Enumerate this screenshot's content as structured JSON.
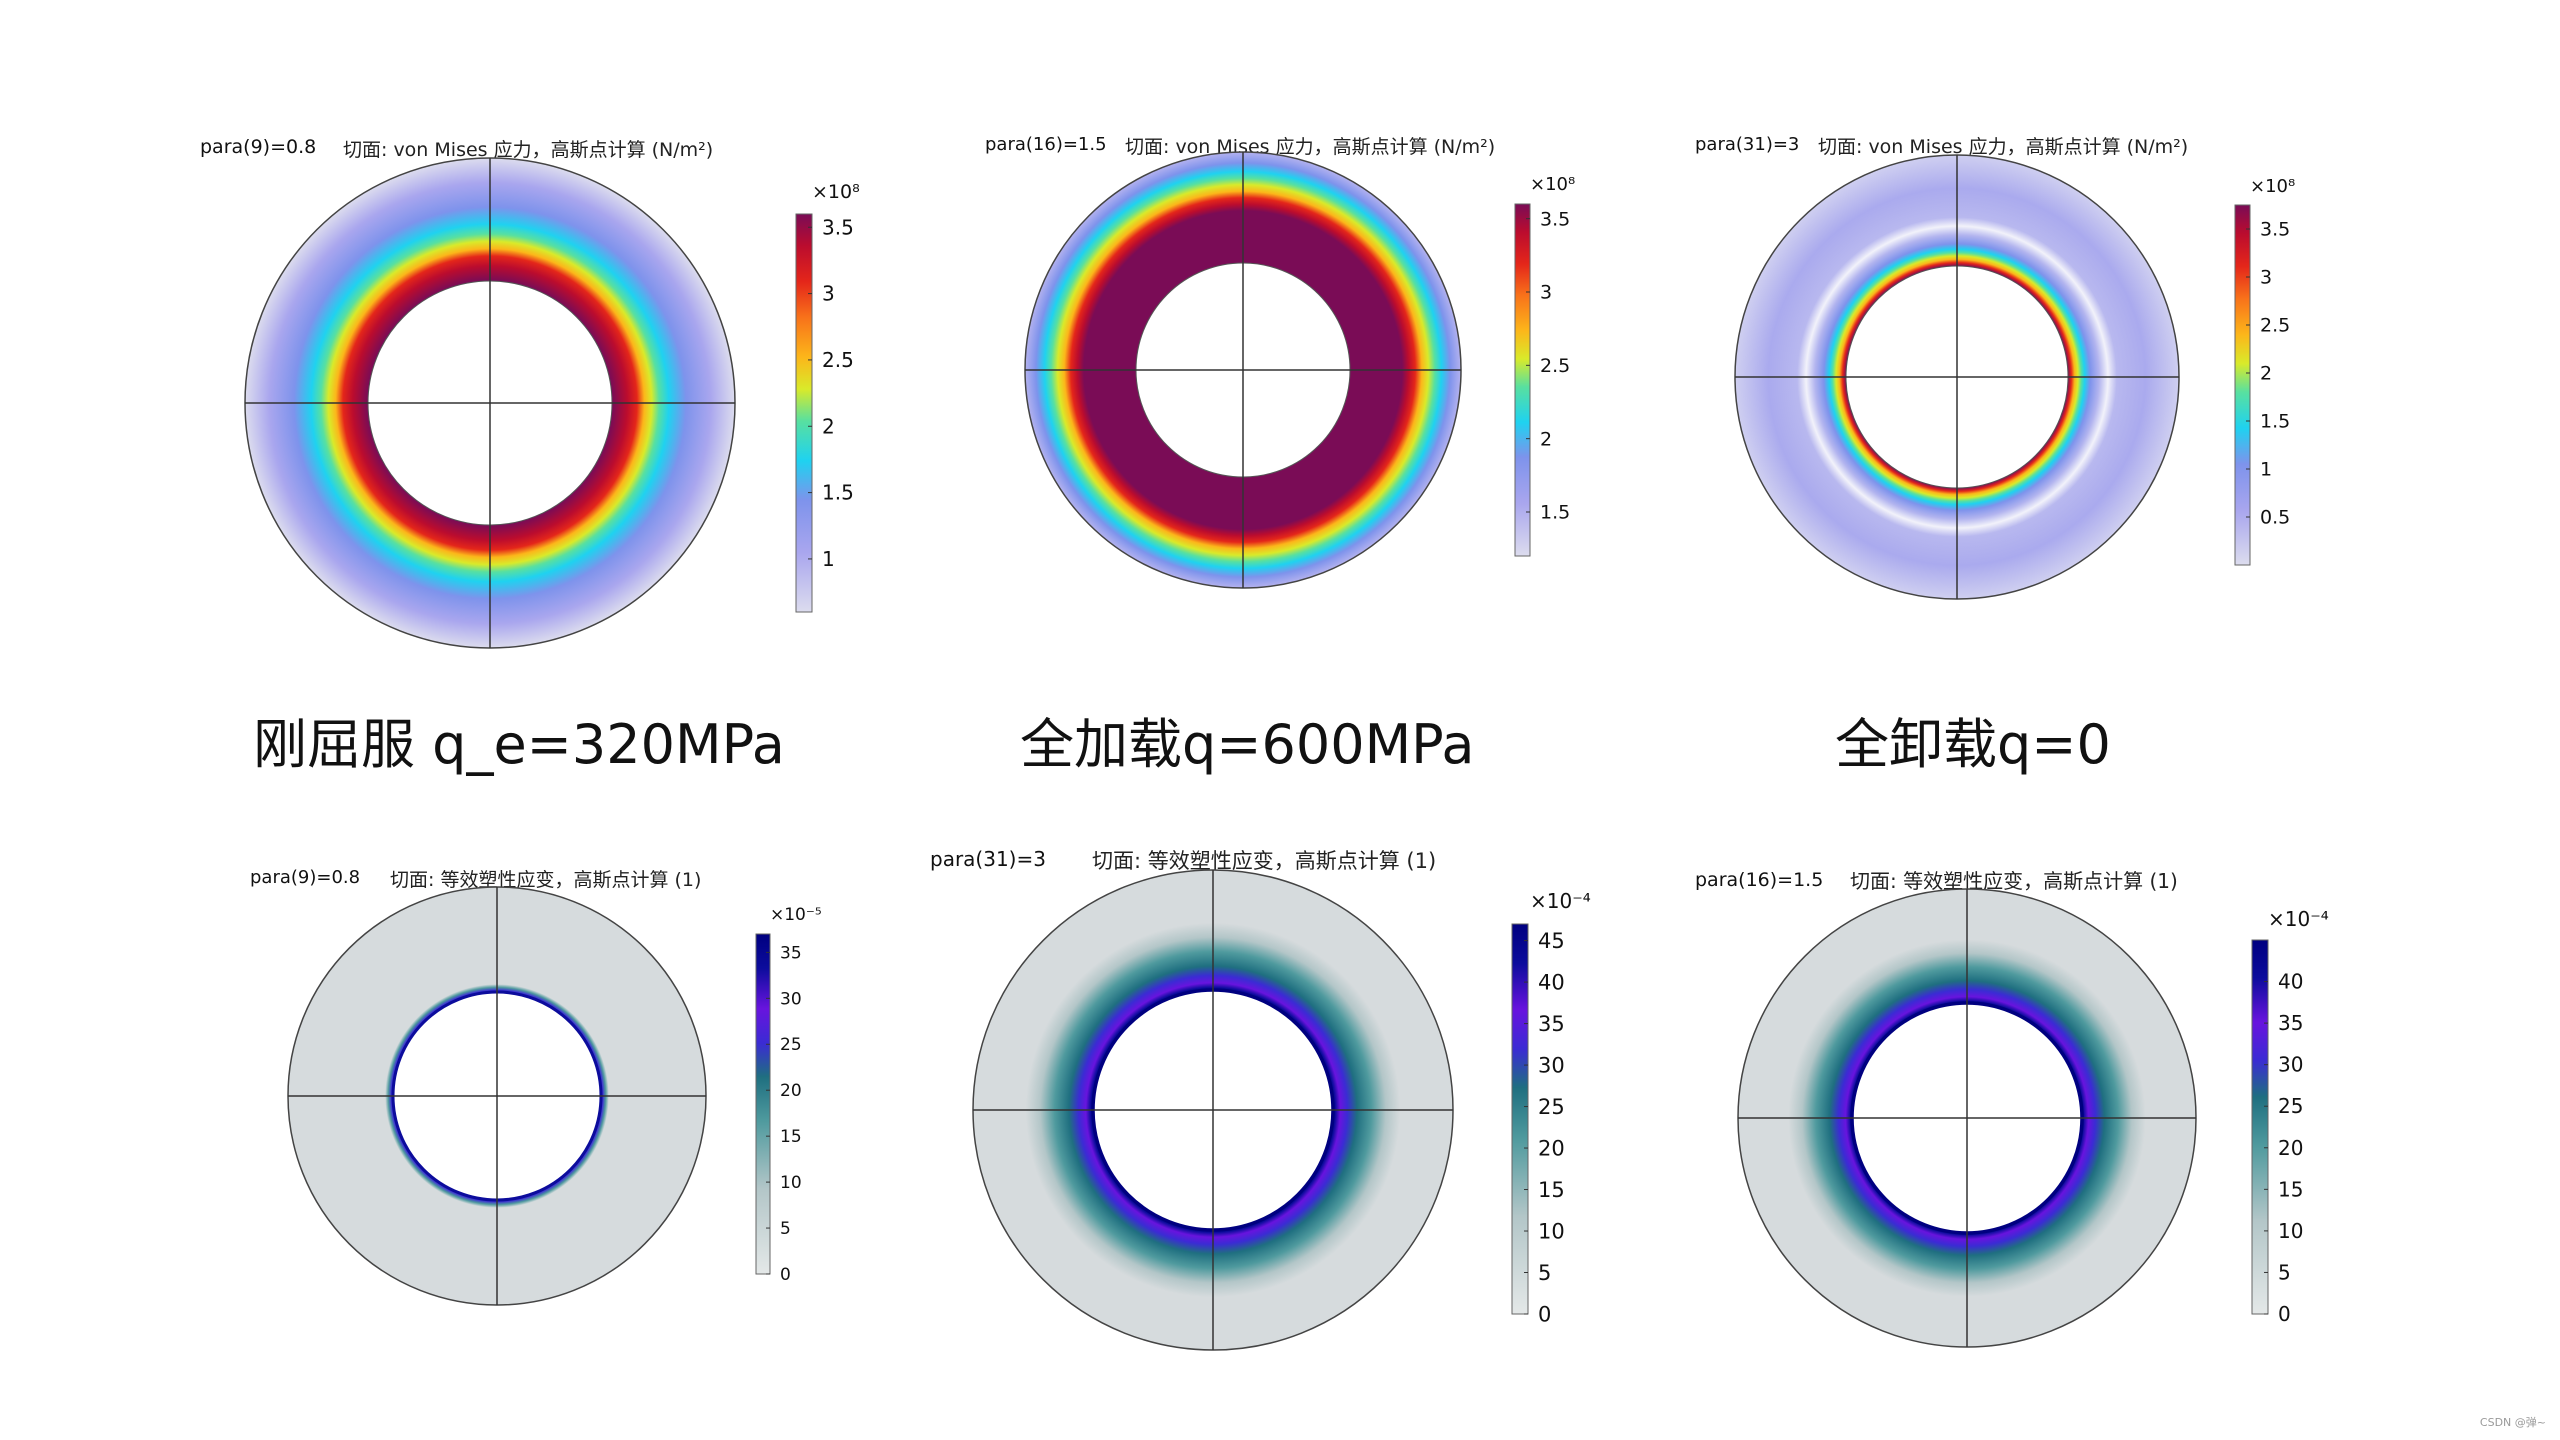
{
  "colors": {
    "stress_scale": [
      "#dcdcee",
      "#a9a6ee",
      "#7e93ec",
      "#1fd2f0",
      "#58e0a0",
      "#d9ea2a",
      "#fcb61a",
      "#f8721a",
      "#e4261a",
      "#bb0c2e",
      "#7a0c56"
    ],
    "strain_scale": [
      "#d9dddf",
      "#b3c6c8",
      "#4f9a9e",
      "#1f6f80",
      "#3b2bd4",
      "#6814de",
      "#0c0c9c",
      "#000080"
    ],
    "plot_bg_gray": "#d6dbdd",
    "crosshair": "#333333"
  },
  "captions": [
    "刚屈服 q_e=320MPa",
    "全加载q=600MPa",
    "全卸载q=0"
  ],
  "watermark": "CSDN @弹~",
  "plots": [
    {
      "id": "stress-yield",
      "param": "para(9)=0.8",
      "title": "切面: von Mises 应力，高斯点计算 (N/m²)",
      "colorbar": {
        "exponent": "×10⁸",
        "ticks": [
          "3.5",
          "3",
          "2.5",
          "2",
          "1.5",
          "1"
        ],
        "tick_values": [
          3.5,
          3.0,
          2.5,
          2.0,
          1.5,
          1.0
        ],
        "min": 0.6,
        "max": 3.6
      }
    },
    {
      "id": "stress-full-load",
      "param": "para(16)=1.5",
      "title": "切面: von Mises 应力，高斯点计算 (N/m²)",
      "colorbar": {
        "exponent": "×10⁸",
        "ticks": [
          "3.5",
          "3",
          "2.5",
          "2",
          "1.5"
        ],
        "tick_values": [
          3.5,
          3.0,
          2.5,
          2.0,
          1.5
        ],
        "min": 1.2,
        "max": 3.6
      }
    },
    {
      "id": "stress-unload",
      "param": "para(31)=3",
      "title": "切面: von Mises 应力，高斯点计算 (N/m²)",
      "colorbar": {
        "exponent": "×10⁸",
        "ticks": [
          "3.5",
          "3",
          "2.5",
          "2",
          "1.5",
          "1",
          "0.5"
        ],
        "tick_values": [
          3.5,
          3.0,
          2.5,
          2.0,
          1.5,
          1.0,
          0.5
        ],
        "min": 0.0,
        "max": 3.75
      }
    },
    {
      "id": "strain-yield",
      "param": "para(9)=0.8",
      "title": "切面: 等效塑性应变，高斯点计算 (1)",
      "colorbar": {
        "exponent": "×10⁻⁵",
        "ticks": [
          "35",
          "30",
          "25",
          "20",
          "15",
          "10",
          "5",
          "0"
        ],
        "tick_values": [
          35,
          30,
          25,
          20,
          15,
          10,
          5,
          0
        ],
        "min": 0,
        "max": 37
      }
    },
    {
      "id": "strain-unload",
      "param": "para(31)=3",
      "title": "切面: 等效塑性应变，高斯点计算 (1)",
      "colorbar": {
        "exponent": "×10⁻⁴",
        "ticks": [
          "45",
          "40",
          "35",
          "30",
          "25",
          "20",
          "15",
          "10",
          "5",
          "0"
        ],
        "tick_values": [
          45,
          40,
          35,
          30,
          25,
          20,
          15,
          10,
          5,
          0
        ],
        "min": 0,
        "max": 47
      }
    },
    {
      "id": "strain-full-load",
      "param": "para(16)=1.5",
      "title": "切面: 等效塑性应变，高斯点计算 (1)",
      "colorbar": {
        "exponent": "×10⁻⁴",
        "ticks": [
          "40",
          "35",
          "30",
          "25",
          "20",
          "15",
          "10",
          "5",
          "0"
        ],
        "tick_values": [
          40,
          35,
          30,
          25,
          20,
          15,
          10,
          5,
          0
        ],
        "min": 0,
        "max": 45
      }
    }
  ]
}
